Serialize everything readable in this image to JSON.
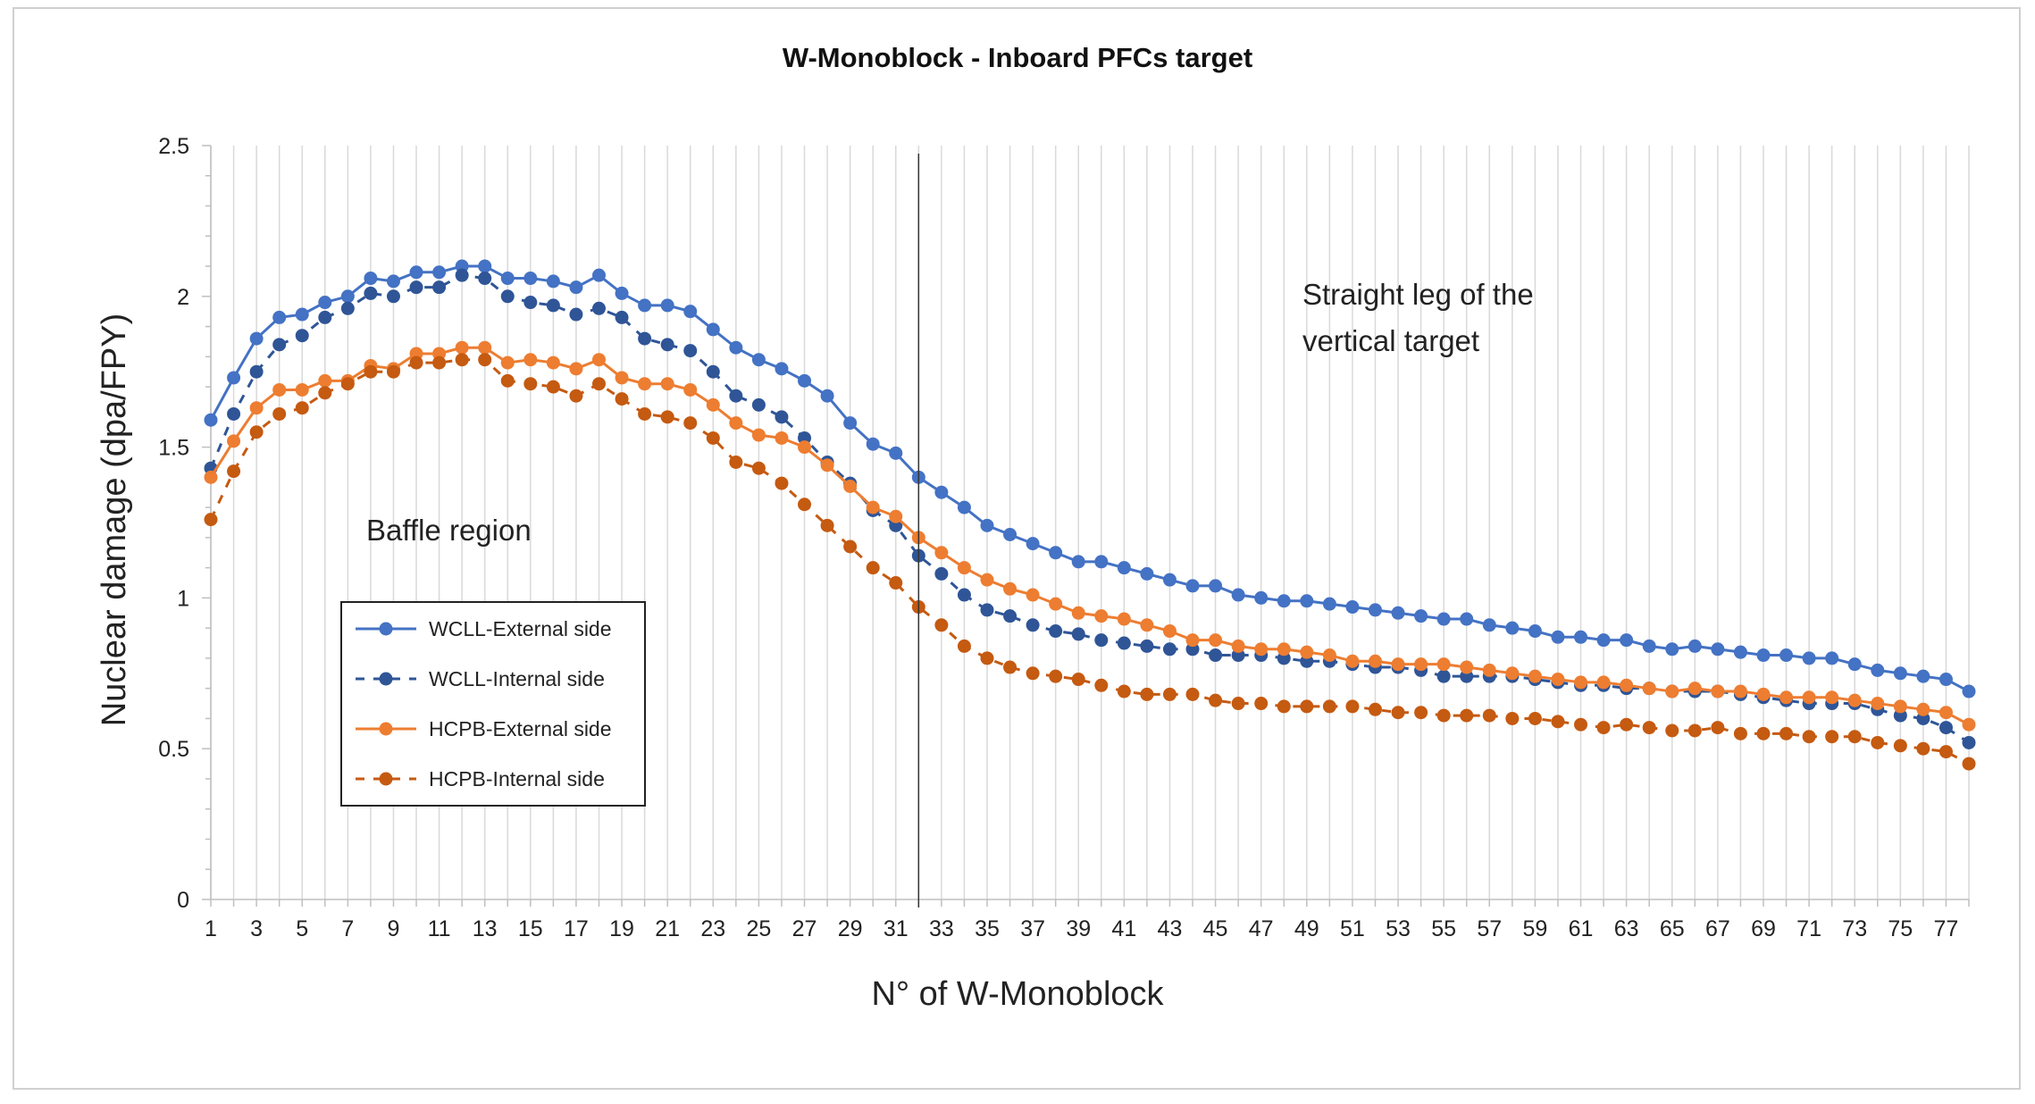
{
  "chart_data": {
    "type": "line",
    "title": "W-Monoblock - Inboard PFCs target",
    "xlabel": "N° of W-Monoblock",
    "ylabel": "Nuclear damage (dpa/FPY)",
    "xlim": [
      1,
      78
    ],
    "ylim": [
      0,
      2.5
    ],
    "y_ticks": [
      "0",
      "0.5",
      "1",
      "1.5",
      "2",
      "2.5"
    ],
    "x_ticks": [
      "1",
      "3",
      "5",
      "7",
      "9",
      "11",
      "13",
      "15",
      "17",
      "19",
      "21",
      "23",
      "25",
      "27",
      "29",
      "31",
      "33",
      "35",
      "37",
      "39",
      "41",
      "43",
      "45",
      "47",
      "49",
      "51",
      "53",
      "55",
      "57",
      "59",
      "61",
      "63",
      "65",
      "67",
      "69",
      "71",
      "73",
      "75",
      "77"
    ],
    "grid": "vertical",
    "legend_position": "left-center",
    "annotations": {
      "baffle": "Baffle region",
      "straight_leg_line1": "Straight leg of the",
      "straight_leg_line2": "vertical target",
      "divider_x": 32
    },
    "x": [
      1,
      2,
      3,
      4,
      5,
      6,
      7,
      8,
      9,
      10,
      11,
      12,
      13,
      14,
      15,
      16,
      17,
      18,
      19,
      20,
      21,
      22,
      23,
      24,
      25,
      26,
      27,
      28,
      29,
      30,
      31,
      32,
      33,
      34,
      35,
      36,
      37,
      38,
      39,
      40,
      41,
      42,
      43,
      44,
      45,
      46,
      47,
      48,
      49,
      50,
      51,
      52,
      53,
      54,
      55,
      56,
      57,
      58,
      59,
      60,
      61,
      62,
      63,
      64,
      65,
      66,
      67,
      68,
      69,
      70,
      71,
      72,
      73,
      74,
      75,
      76,
      77,
      78
    ],
    "series": [
      {
        "name": "WCLL-External side",
        "color": "#4472C4",
        "style": "solid",
        "values": [
          1.59,
          1.73,
          1.86,
          1.93,
          1.94,
          1.98,
          2.0,
          2.06,
          2.05,
          2.08,
          2.08,
          2.1,
          2.1,
          2.06,
          2.06,
          2.05,
          2.03,
          2.07,
          2.01,
          1.97,
          1.97,
          1.95,
          1.89,
          1.83,
          1.79,
          1.76,
          1.72,
          1.67,
          1.58,
          1.51,
          1.48,
          1.4,
          1.35,
          1.3,
          1.24,
          1.21,
          1.18,
          1.15,
          1.12,
          1.12,
          1.1,
          1.08,
          1.06,
          1.04,
          1.04,
          1.01,
          1.0,
          0.99,
          0.99,
          0.98,
          0.97,
          0.96,
          0.95,
          0.94,
          0.93,
          0.93,
          0.91,
          0.9,
          0.89,
          0.87,
          0.87,
          0.86,
          0.86,
          0.84,
          0.83,
          0.84,
          0.83,
          0.82,
          0.81,
          0.81,
          0.8,
          0.8,
          0.78,
          0.76,
          0.75,
          0.74,
          0.73,
          0.69
        ]
      },
      {
        "name": "WCLL-Internal side",
        "color": "#2F5597",
        "style": "dashed",
        "values": [
          1.43,
          1.61,
          1.75,
          1.84,
          1.87,
          1.93,
          1.96,
          2.01,
          2.0,
          2.03,
          2.03,
          2.07,
          2.06,
          2.0,
          1.98,
          1.97,
          1.94,
          1.96,
          1.93,
          1.86,
          1.84,
          1.82,
          1.75,
          1.67,
          1.64,
          1.6,
          1.53,
          1.45,
          1.38,
          1.29,
          1.24,
          1.14,
          1.08,
          1.01,
          0.96,
          0.94,
          0.91,
          0.89,
          0.88,
          0.86,
          0.85,
          0.84,
          0.83,
          0.83,
          0.81,
          0.81,
          0.81,
          0.8,
          0.79,
          0.79,
          0.78,
          0.77,
          0.77,
          0.76,
          0.74,
          0.74,
          0.74,
          0.74,
          0.73,
          0.72,
          0.71,
          0.71,
          0.7,
          0.7,
          0.69,
          0.69,
          0.69,
          0.68,
          0.67,
          0.66,
          0.65,
          0.65,
          0.65,
          0.63,
          0.61,
          0.6,
          0.57,
          0.52
        ]
      },
      {
        "name": "HCPB-External side",
        "color": "#ED7D31",
        "style": "solid",
        "values": [
          1.4,
          1.52,
          1.63,
          1.69,
          1.69,
          1.72,
          1.72,
          1.77,
          1.76,
          1.81,
          1.81,
          1.83,
          1.83,
          1.78,
          1.79,
          1.78,
          1.76,
          1.79,
          1.73,
          1.71,
          1.71,
          1.69,
          1.64,
          1.58,
          1.54,
          1.53,
          1.5,
          1.44,
          1.37,
          1.3,
          1.27,
          1.2,
          1.15,
          1.1,
          1.06,
          1.03,
          1.01,
          0.98,
          0.95,
          0.94,
          0.93,
          0.91,
          0.89,
          0.86,
          0.86,
          0.84,
          0.83,
          0.83,
          0.82,
          0.81,
          0.79,
          0.79,
          0.78,
          0.78,
          0.78,
          0.77,
          0.76,
          0.75,
          0.74,
          0.73,
          0.72,
          0.72,
          0.71,
          0.7,
          0.69,
          0.7,
          0.69,
          0.69,
          0.68,
          0.67,
          0.67,
          0.67,
          0.66,
          0.65,
          0.64,
          0.63,
          0.62,
          0.58
        ]
      },
      {
        "name": "HCPB-Internal side",
        "color": "#C55A11",
        "style": "dashed",
        "values": [
          1.26,
          1.42,
          1.55,
          1.61,
          1.63,
          1.68,
          1.71,
          1.75,
          1.75,
          1.78,
          1.78,
          1.79,
          1.79,
          1.72,
          1.71,
          1.7,
          1.67,
          1.71,
          1.66,
          1.61,
          1.6,
          1.58,
          1.53,
          1.45,
          1.43,
          1.38,
          1.31,
          1.24,
          1.17,
          1.1,
          1.05,
          0.97,
          0.91,
          0.84,
          0.8,
          0.77,
          0.75,
          0.74,
          0.73,
          0.71,
          0.69,
          0.68,
          0.68,
          0.68,
          0.66,
          0.65,
          0.65,
          0.64,
          0.64,
          0.64,
          0.64,
          0.63,
          0.62,
          0.62,
          0.61,
          0.61,
          0.61,
          0.6,
          0.6,
          0.59,
          0.58,
          0.57,
          0.58,
          0.57,
          0.56,
          0.56,
          0.57,
          0.55,
          0.55,
          0.55,
          0.54,
          0.54,
          0.54,
          0.52,
          0.51,
          0.5,
          0.49,
          0.45
        ]
      }
    ]
  }
}
